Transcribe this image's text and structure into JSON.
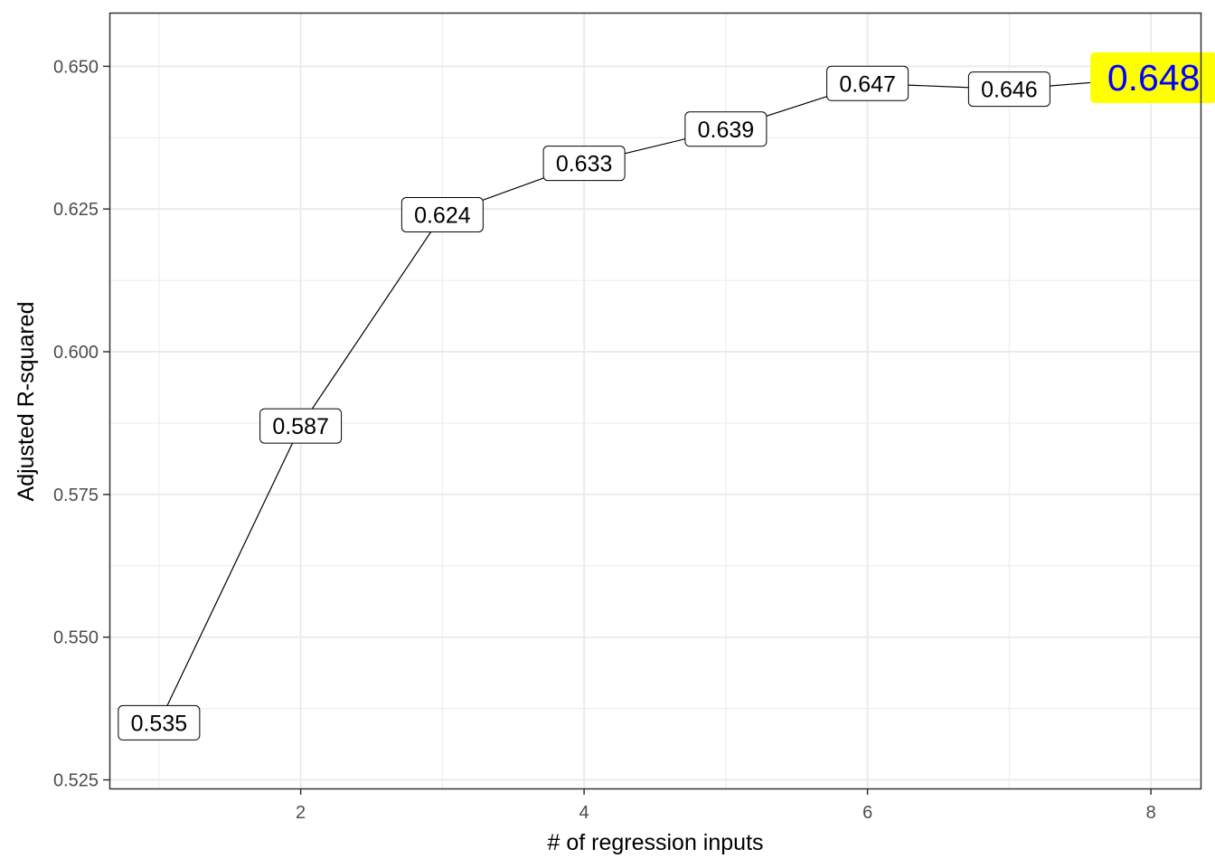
{
  "chart_data": {
    "type": "line",
    "xlabel": "# of regression inputs",
    "ylabel": "Adjusted R-squared",
    "x": [
      1,
      2,
      3,
      4,
      5,
      6,
      7,
      8
    ],
    "values": [
      0.535,
      0.587,
      0.624,
      0.633,
      0.639,
      0.647,
      0.646,
      0.648
    ],
    "labels": [
      "0.535",
      "0.587",
      "0.624",
      "0.633",
      "0.639",
      "0.647",
      "0.646",
      "0.648"
    ],
    "xticks": [
      2,
      4,
      6,
      8
    ],
    "xtick_labels": [
      "2",
      "4",
      "6",
      "8"
    ],
    "yticks": [
      0.525,
      0.55,
      0.575,
      0.6,
      0.625,
      0.65
    ],
    "ytick_labels": [
      "0.525",
      "0.550",
      "0.575",
      "0.600",
      "0.625",
      "0.650"
    ],
    "xlim": [
      0.65,
      8.35
    ],
    "ylim": [
      0.5235,
      0.6594
    ],
    "grid": true,
    "highlight": {
      "index": 7,
      "fill": "#ffff00",
      "text_color": "#0000ff"
    },
    "colors": {
      "line": "#000000",
      "label_fill": "#ffffff",
      "grid": "#ebebeb",
      "panel_border": "#333333"
    }
  }
}
